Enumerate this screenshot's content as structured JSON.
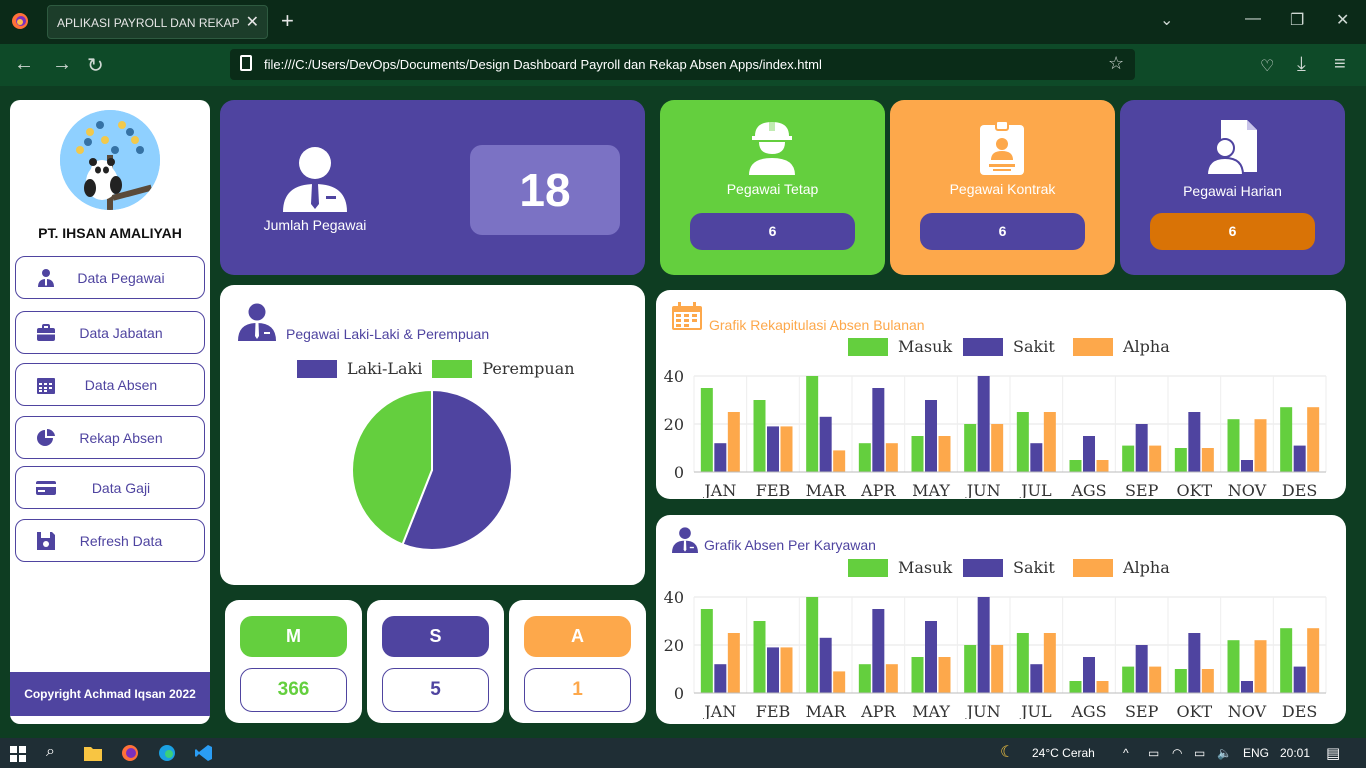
{
  "browser": {
    "tab_title": "APLIKASI PAYROLL DAN REKAP ABSEN",
    "url": "file:///C:/Users/DevOps/Documents/Design Dashboard Payroll dan Rekap Absen Apps/index.html"
  },
  "sidebar": {
    "company": "PT. IHSAN AMALIYAH",
    "menu": [
      {
        "label": "Data Pegawai",
        "icon": "user-tie-icon"
      },
      {
        "label": "Data Jabatan",
        "icon": "briefcase-icon"
      },
      {
        "label": "Data Absen",
        "icon": "calendar-icon"
      },
      {
        "label": "Rekap Absen",
        "icon": "pie-chart-icon"
      },
      {
        "label": "Data Gaji",
        "icon": "credit-card-icon"
      },
      {
        "label": "Refresh Data",
        "icon": "floppy-disk-icon"
      }
    ],
    "copyright": "Copyright Achmad Iqsan 2022"
  },
  "summary": {
    "jumlah_label": "Jumlah Pegawai",
    "jumlah_value": "18",
    "tetap_label": "Pegawai Tetap",
    "tetap_value": "6",
    "kontrak_label": "Pegawai Kontrak",
    "kontrak_value": "6",
    "harian_label": "Pegawai Harian",
    "harian_value": "6"
  },
  "gender": {
    "title": "Pegawai Laki-Laki & Perempuan",
    "legend_male": "Laki-Laki",
    "legend_female": "Perempuan"
  },
  "msa": {
    "m_label": "M",
    "m_value": "366",
    "s_label": "S",
    "s_value": "5",
    "a_label": "A",
    "a_value": "1"
  },
  "monthly": {
    "title": "Grafik Rekapitulasi Absen Bulanan"
  },
  "per_employee": {
    "title": "Grafik Absen Per Karyawan"
  },
  "colors": {
    "masuk": "#64cf3e",
    "sakit": "#4f44a0",
    "alpha": "#fda84b",
    "purple": "#4f44a0",
    "harian_pill": "#d97306"
  },
  "chart_data": [
    {
      "type": "pie",
      "labels": [
        "Laki-Laki",
        "Perempuan"
      ],
      "values": [
        56,
        44
      ]
    },
    {
      "type": "bar",
      "categories": [
        "JAN",
        "FEB",
        "MAR",
        "APR",
        "MAY",
        "JUN",
        "JUL",
        "AGS",
        "SEP",
        "OKT",
        "NOV",
        "DES"
      ],
      "series": [
        {
          "name": "Masuk",
          "values": [
            35,
            30,
            40,
            12,
            15,
            20,
            25,
            5,
            11,
            10,
            22,
            27
          ]
        },
        {
          "name": "Sakit",
          "values": [
            12,
            19,
            23,
            35,
            30,
            40,
            12,
            15,
            20,
            25,
            5,
            11
          ]
        },
        {
          "name": "Alpha",
          "values": [
            25,
            19,
            9,
            12,
            15,
            20,
            25,
            5,
            11,
            10,
            22,
            27
          ]
        }
      ],
      "yticks": [
        "0",
        "20",
        "40"
      ],
      "ylim": [
        0,
        40
      ],
      "legend": "top"
    },
    {
      "type": "bar",
      "categories": [
        "JAN",
        "FEB",
        "MAR",
        "APR",
        "MAY",
        "JUN",
        "JUL",
        "AGS",
        "SEP",
        "OKT",
        "NOV",
        "DES"
      ],
      "series": [
        {
          "name": "Masuk",
          "values": [
            35,
            30,
            40,
            12,
            15,
            20,
            25,
            5,
            11,
            10,
            22,
            27
          ]
        },
        {
          "name": "Sakit",
          "values": [
            12,
            19,
            23,
            35,
            30,
            40,
            12,
            15,
            20,
            25,
            5,
            11
          ]
        },
        {
          "name": "Alpha",
          "values": [
            25,
            19,
            9,
            12,
            15,
            20,
            25,
            5,
            11,
            10,
            22,
            27
          ]
        }
      ],
      "yticks": [
        "0",
        "20",
        "40"
      ],
      "ylim": [
        0,
        40
      ],
      "legend": "top"
    }
  ],
  "taskbar": {
    "weather": "24°C  Cerah",
    "lang": "ENG",
    "time": "20:01"
  }
}
